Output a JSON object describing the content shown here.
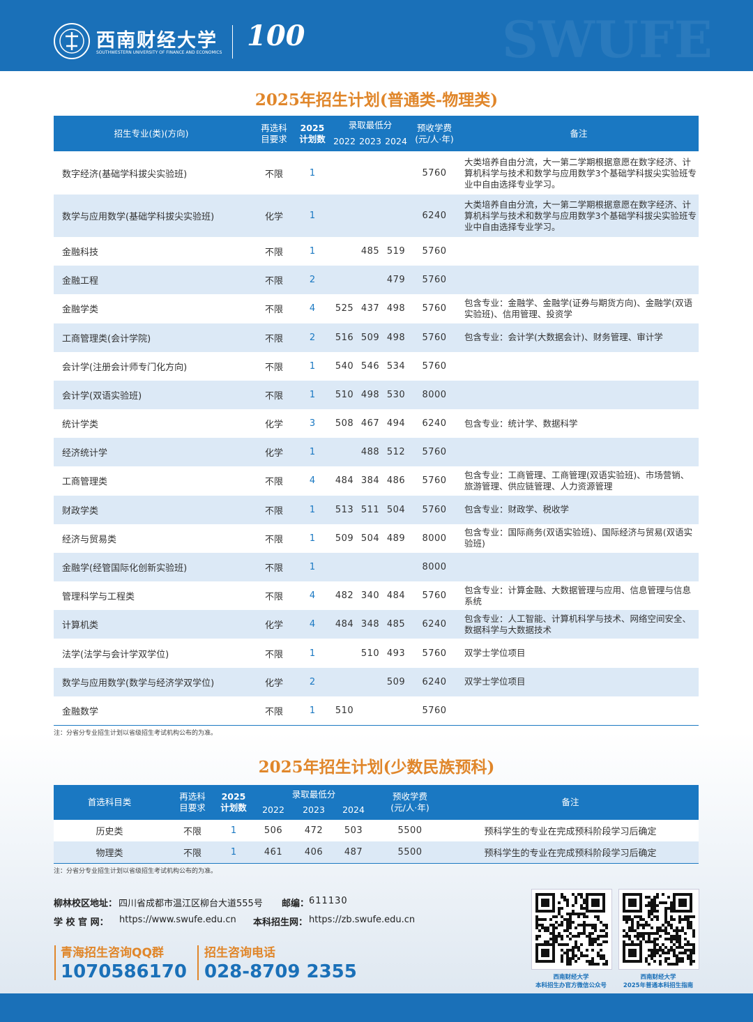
{
  "header": {
    "logo_name": "西南财经大学",
    "logo_english": "SOUTHWESTERN UNIVERSITY OF FINANCE AND ECONOMICS",
    "anniversary": "100",
    "watermark": "SWUFE"
  },
  "plan_physics": {
    "title": "2025年招生计划(普通类-物理类)",
    "header": {
      "major": "招生专业(类)(方向)",
      "requirement": [
        "再选科",
        "目要求"
      ],
      "plan": [
        "2025",
        "计划数"
      ],
      "min_score": "录取最低分",
      "years": [
        "2022",
        "2023",
        "2024"
      ],
      "fee": [
        "预收学费",
        "(元/人·年)"
      ],
      "note": "备注"
    },
    "rows": [
      [
        "数字经济(基础学科拔尖实验班)",
        "不限",
        "1",
        null,
        null,
        null,
        "5760",
        "大类培养自由分流，大一第二学期根据意愿在数字经济、计算机科学与技术和数学与应用数学3个基础学科拔尖实验班专业中自由选择专业学习。"
      ],
      [
        "数学与应用数学(基础学科拔尖实验班)",
        "化学",
        "1",
        null,
        null,
        null,
        "6240",
        "大类培养自由分流，大一第二学期根据意愿在数字经济、计算机科学与技术和数学与应用数学3个基础学科拔尖实验班专业中自由选择专业学习。"
      ],
      [
        "金融科技",
        "不限",
        "1",
        null,
        "485",
        "519",
        "5760",
        null
      ],
      [
        "金融工程",
        "不限",
        "2",
        null,
        null,
        "479",
        "5760",
        null
      ],
      [
        "金融学类",
        "不限",
        "4",
        "525",
        "437",
        "498",
        "5760",
        "包含专业：金融学、金融学(证券与期货方向)、金融学(双语实验班)、信用管理、投资学"
      ],
      [
        "工商管理类(会计学院)",
        "不限",
        "2",
        "516",
        "509",
        "498",
        "5760",
        "包含专业：会计学(大数据会计)、财务管理、审计学"
      ],
      [
        "会计学(注册会计师专门化方向)",
        "不限",
        "1",
        "540",
        "546",
        "534",
        "5760",
        null
      ],
      [
        "会计学(双语实验班)",
        "不限",
        "1",
        "510",
        "498",
        "530",
        "8000",
        null
      ],
      [
        "统计学类",
        "化学",
        "3",
        "508",
        "467",
        "494",
        "6240",
        "包含专业：统计学、数据科学"
      ],
      [
        "经济统计学",
        "化学",
        "1",
        null,
        "488",
        "512",
        "5760",
        null
      ],
      [
        "工商管理类",
        "不限",
        "4",
        "484",
        "384",
        "486",
        "5760",
        "包含专业：工商管理、工商管理(双语实验班)、市场营销、旅游管理、供应链管理、人力资源管理"
      ],
      [
        "财政学类",
        "不限",
        "1",
        "513",
        "511",
        "504",
        "5760",
        "包含专业：财政学、税收学"
      ],
      [
        "经济与贸易类",
        "不限",
        "1",
        "509",
        "504",
        "489",
        "8000",
        "包含专业：国际商务(双语实验班)、国际经济与贸易(双语实验班)"
      ],
      [
        "金融学(经管国际化创新实验班)",
        "不限",
        "1",
        null,
        null,
        null,
        "8000",
        null
      ],
      [
        "管理科学与工程类",
        "不限",
        "4",
        "482",
        "340",
        "484",
        "5760",
        "包含专业：计算金融、大数据管理与应用、信息管理与信息系统"
      ],
      [
        "计算机类",
        "化学",
        "4",
        "484",
        "348",
        "485",
        "6240",
        "包含专业：人工智能、计算机科学与技术、网络空间安全、数据科学与大数据技术"
      ],
      [
        "法学(法学与会计学双学位)",
        "不限",
        "1",
        null,
        "510",
        "493",
        "5760",
        "双学士学位项目"
      ],
      [
        "数学与应用数学(数学与经济学双学位)",
        "化学",
        "2",
        null,
        null,
        "509",
        "6240",
        "双学士学位项目"
      ],
      [
        "金融数学",
        "不限",
        "1",
        "510",
        null,
        null,
        "5760",
        null
      ]
    ],
    "footnote": "注：分省分专业招生计划以省级招生考试机构公布的为准。"
  },
  "plan_minority": {
    "title": "2025年招生计划(少数民族预科)",
    "header": {
      "subject": "首选科目类",
      "requirement": [
        "再选科",
        "目要求"
      ],
      "plan": [
        "2025",
        "计划数"
      ],
      "min_score": "录取最低分",
      "years": [
        "2022",
        "2023",
        "2024"
      ],
      "fee": [
        "预收学费",
        "(元/人·年)"
      ],
      "note": "备注"
    },
    "rows": [
      [
        "历史类",
        "不限",
        "1",
        "506",
        "472",
        "503",
        "5500",
        "预科学生的专业在完成预科阶段学习后确定"
      ],
      [
        "物理类",
        "不限",
        "1",
        "461",
        "406",
        "487",
        "5500",
        "预科学生的专业在完成预科阶段学习后确定"
      ]
    ],
    "footnote": "注：分省分专业招生计划以省级招生考试机构公布的为准。"
  },
  "footer": {
    "address_label": "柳林校区地址：",
    "address": "四川省成都市温江区柳台大道555号",
    "postcode_label": "邮编：",
    "postcode": "611130",
    "website_label": "学 校 官 网：",
    "website": "https://www.swufe.edu.cn",
    "admission_label": "本科招生网：",
    "admission_site": "https://zb.swufe.edu.cn",
    "qq_label": "青海招生咨询QQ群",
    "qq": "1070586170",
    "phone_label": "招生咨询电话",
    "phone": "028-8709 2355",
    "qr_captions": [
      [
        "西南财经大学",
        "本科招生办官方微信公众号"
      ],
      [
        "西南财经大学",
        "2025年普通本科招生指南"
      ]
    ]
  }
}
